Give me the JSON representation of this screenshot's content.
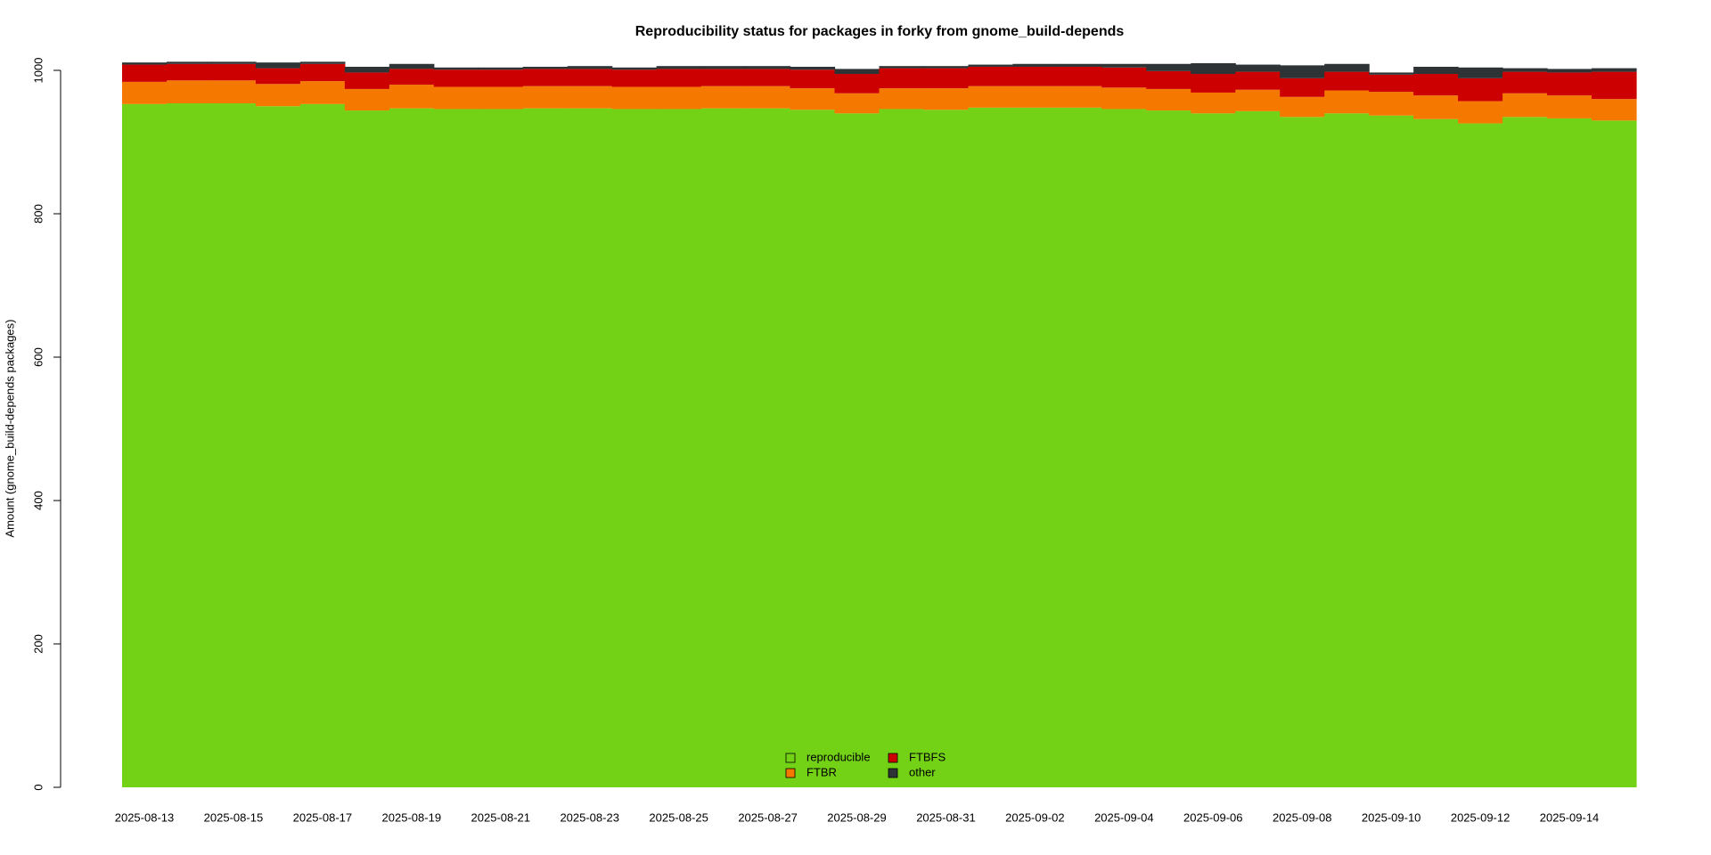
{
  "chart_data": {
    "type": "stacked-step-area",
    "title": "Reproducibility status for packages in forky from gnome_build-depends",
    "y_label": "Amount (gnome_build-depends packages)",
    "categories": [
      "2025-08-13",
      null,
      "2025-08-15",
      null,
      "2025-08-17",
      null,
      "2025-08-19",
      null,
      "2025-08-21",
      null,
      "2025-08-23",
      null,
      "2025-08-25",
      null,
      "2025-08-27",
      null,
      "2025-08-29",
      null,
      "2025-08-31",
      null,
      "2025-09-02",
      null,
      "2025-09-04",
      null,
      "2025-09-06",
      null,
      "2025-09-08",
      null,
      "2025-09-10",
      null,
      "2025-09-12",
      null,
      "2025-09-14",
      null
    ],
    "series": [
      {
        "name": "reproducible",
        "color": "#73d216",
        "values": [
          953,
          954,
          954,
          950,
          953,
          944,
          947,
          946,
          946,
          947,
          947,
          946,
          946,
          947,
          947,
          945,
          940,
          946,
          945,
          948,
          948,
          948,
          946,
          944,
          940,
          943,
          935,
          940,
          937,
          932,
          926,
          935,
          933,
          930
        ]
      },
      {
        "name": "FTBR",
        "color": "#f57900",
        "values": [
          31,
          32,
          32,
          31,
          32,
          30,
          33,
          31,
          31,
          31,
          31,
          31,
          31,
          31,
          31,
          30,
          28,
          29,
          30,
          30,
          30,
          30,
          30,
          30,
          29,
          30,
          28,
          32,
          33,
          33,
          31,
          33,
          32,
          30
        ]
      },
      {
        "name": "FTBFS",
        "color": "#cc0000",
        "values": [
          24,
          23,
          23,
          22,
          24,
          23,
          22,
          24,
          24,
          24,
          24,
          24,
          25,
          24,
          24,
          26,
          27,
          28,
          28,
          27,
          27,
          27,
          28,
          25,
          26,
          25,
          26,
          26,
          24,
          30,
          32,
          30,
          32,
          38
        ]
      },
      {
        "name": "other",
        "color": "#2e3436",
        "values": [
          3,
          3,
          3,
          8,
          3,
          8,
          7,
          3,
          3,
          3,
          4,
          3,
          4,
          4,
          4,
          4,
          7,
          3,
          3,
          3,
          4,
          4,
          5,
          10,
          15,
          10,
          18,
          11,
          3,
          10,
          15,
          5,
          5,
          5
        ]
      }
    ],
    "ylim": [
      0,
      1000
    ],
    "yticks": [
      0,
      200,
      400,
      600,
      800,
      1000
    ],
    "legend": "bottom"
  }
}
